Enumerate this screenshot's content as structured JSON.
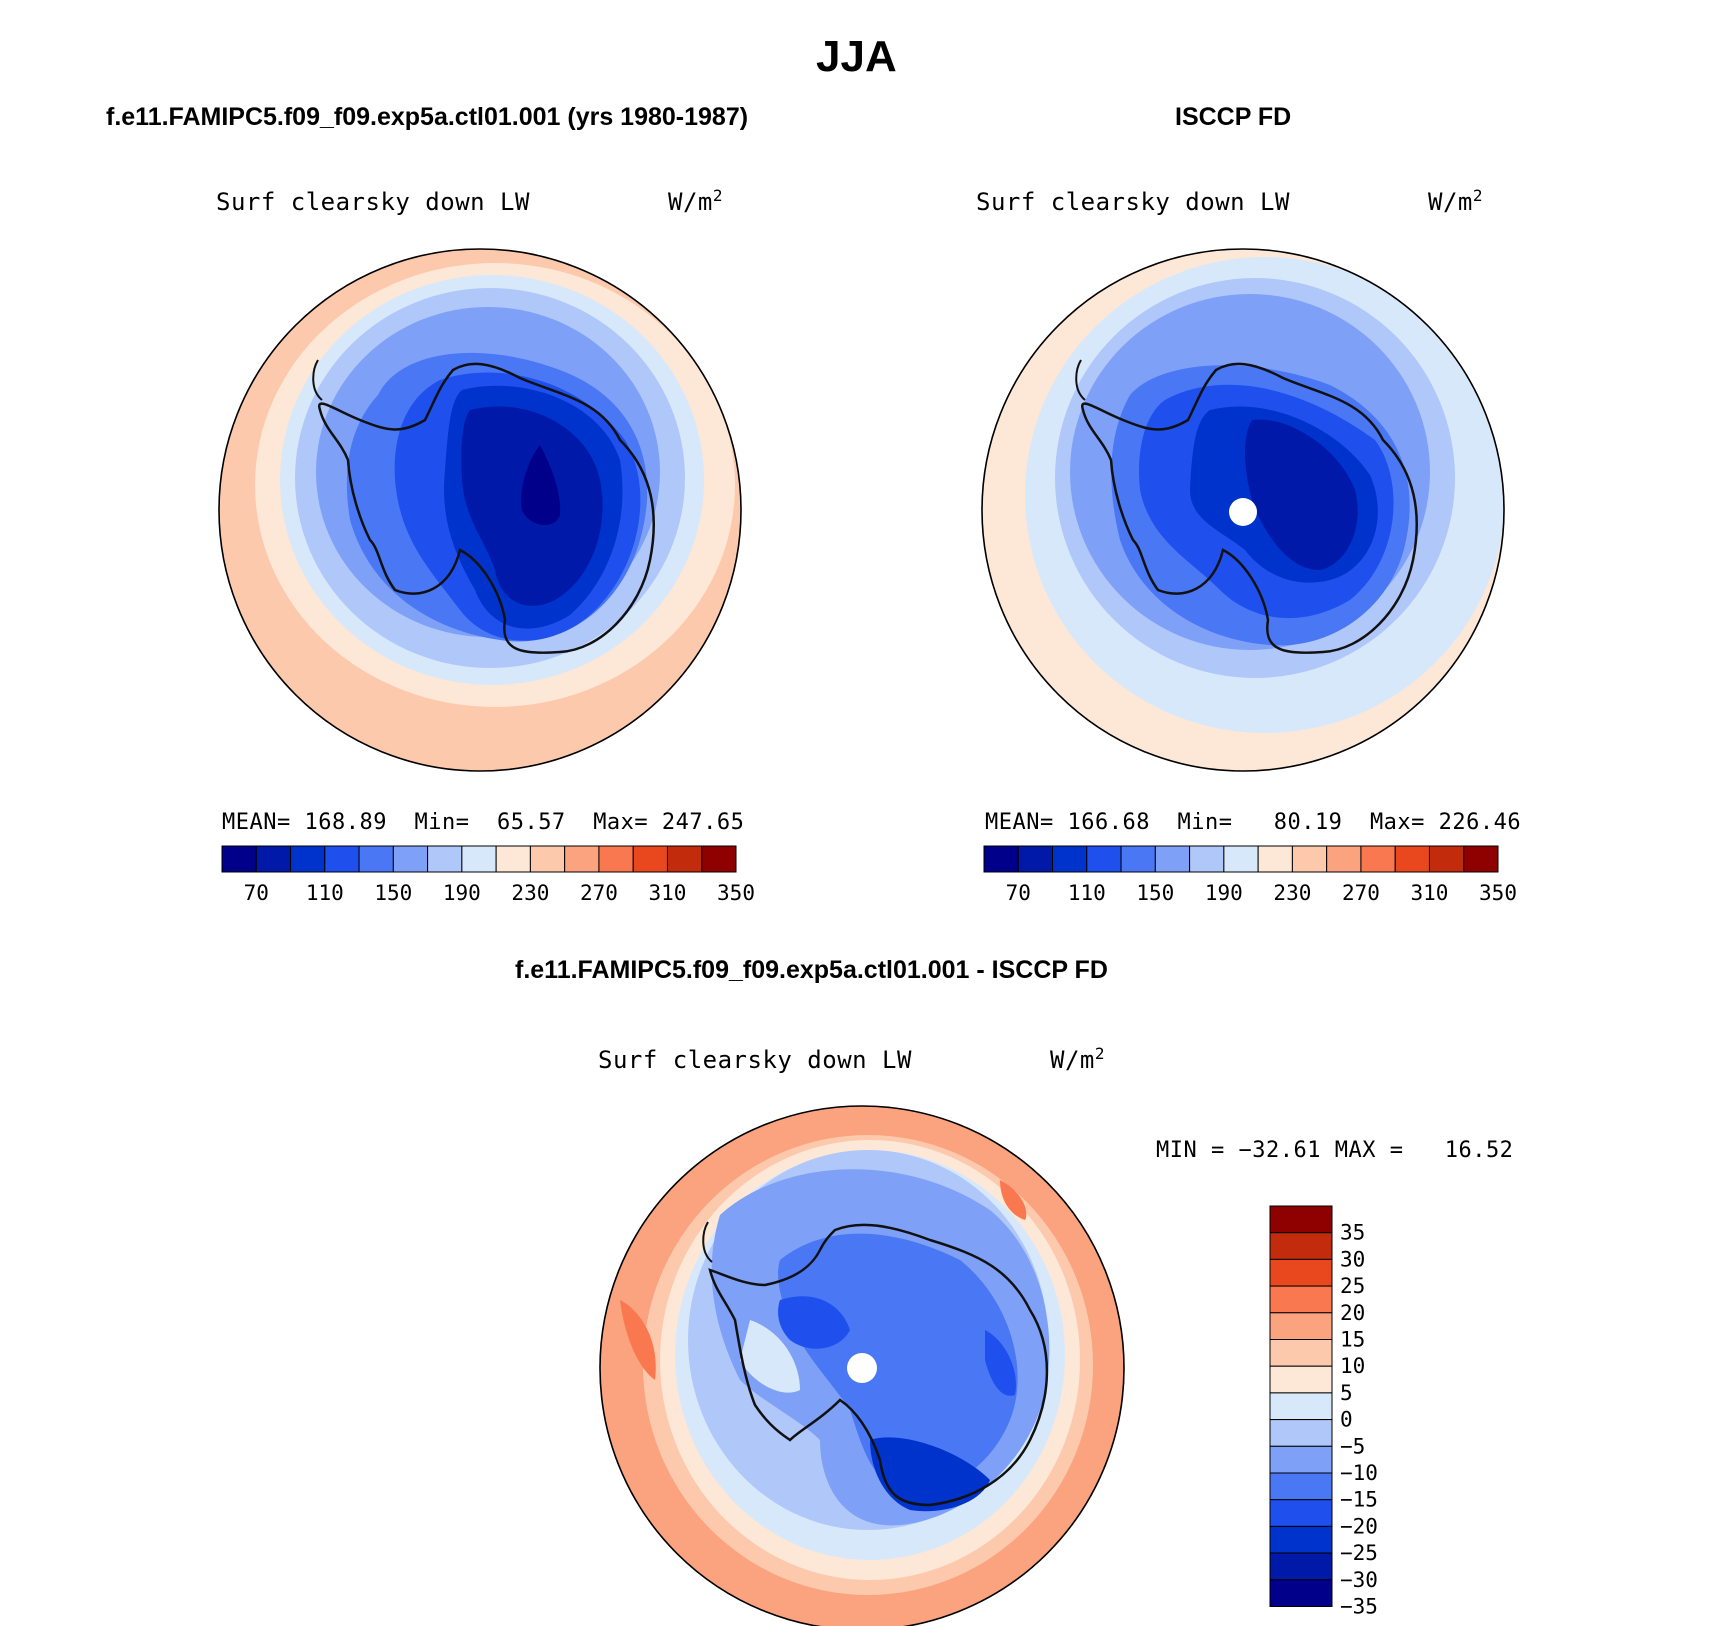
{
  "title": "JJA",
  "panels": [
    {
      "id": "model",
      "title": "f.e11.FAMIPC5.f09_f09.exp5a.ctl01.001 (yrs 1980-1987)",
      "variable": "Surf clearsky down LW",
      "units_base": "W/m",
      "units_exp": "2",
      "stats": {
        "mean_label": "MEAN=",
        "mean": "168.89",
        "min_label": "Min=",
        "min": "65.57",
        "max_label": "Max=",
        "max": "247.65"
      }
    },
    {
      "id": "obs",
      "title": "ISCCP FD",
      "variable": "Surf clearsky down LW",
      "units_base": "W/m",
      "units_exp": "2",
      "stats": {
        "mean_label": "MEAN=",
        "mean": "166.68",
        "min_label": "Min=",
        "min": "80.19",
        "max_label": "Max=",
        "max": "226.46"
      }
    },
    {
      "id": "diff",
      "title": "f.e11.FAMIPC5.f09_f09.exp5a.ctl01.001 - ISCCP FD",
      "variable": "Surf clearsky down LW",
      "units_base": "W/m",
      "units_exp": "2",
      "stats": {
        "min_label": "MIN =",
        "min": "−32.61",
        "max_label": "MAX =",
        "max": "16.52"
      }
    }
  ],
  "colorbar_abs": {
    "colors": [
      "#00008a",
      "#0019a8",
      "#0033cc",
      "#1f50ee",
      "#4a78f5",
      "#7ea1f7",
      "#b0c7fa",
      "#d8e8fb",
      "#fde7d6",
      "#fcc9ad",
      "#fba27e",
      "#fa7850",
      "#e9481e",
      "#c22b0c",
      "#8f0000"
    ],
    "labels": [
      "70",
      "110",
      "150",
      "190",
      "230",
      "270",
      "310",
      "350"
    ]
  },
  "colorbar_diff": {
    "colors": [
      "#00008a",
      "#0019a8",
      "#0033cc",
      "#1f50ee",
      "#4a78f5",
      "#7ea1f7",
      "#b0c7fa",
      "#d8e8fb",
      "#fde7d6",
      "#fcc9ad",
      "#fba27e",
      "#fa7850",
      "#e9481e",
      "#c22b0c",
      "#8f0000"
    ],
    "labels": [
      "35",
      "30",
      "25",
      "20",
      "15",
      "10",
      "5",
      "0",
      "−5",
      "−10",
      "−15",
      "−20",
      "−25",
      "−30",
      "−35"
    ]
  }
}
